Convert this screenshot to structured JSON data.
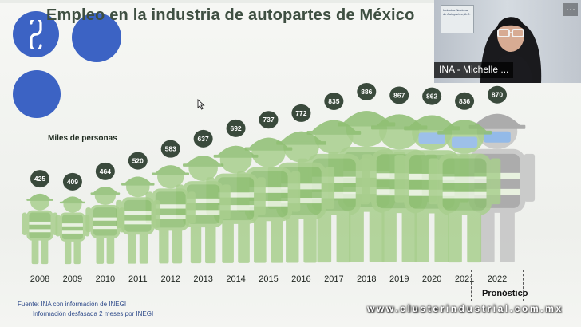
{
  "slide": {
    "title": "Empleo en la industria de autopartes de México",
    "y_label": "Miles de personas",
    "forecast_label": "Pronóstico",
    "source_line1": "Fuente: INA con información de INEGI",
    "source_line2": "Información desfasada 2 meses por INEGI",
    "watermark": "www.clusterindustrial.com.mx"
  },
  "video_call": {
    "participant_name": "INA - Michelle ...",
    "menu_icon": "more-options-icon",
    "poster_text": "Industria Nacional de Autopartes, A.C."
  },
  "colors": {
    "bubble": "#3a4a3c",
    "figure": "#a9cf8e",
    "figure_forecast": "#c9c9c9",
    "mask": "#8fb8e8",
    "accent": "#3c63c4"
  },
  "chart_data": {
    "type": "bar",
    "title": "Empleo en la industria de autopartes de México",
    "ylabel": "Miles de personas",
    "xlabel": "",
    "categories": [
      "2008",
      "2009",
      "2010",
      "2011",
      "2012",
      "2013",
      "2014",
      "2015",
      "2016",
      "2017",
      "2018",
      "2019",
      "2020",
      "2021",
      "2022"
    ],
    "values": [
      425,
      409,
      464,
      520,
      583,
      637,
      692,
      737,
      772,
      835,
      886,
      867,
      862,
      836,
      870
    ],
    "forecast_categories": [
      "2022"
    ],
    "masked_categories": [
      "2020",
      "2021",
      "2022"
    ]
  }
}
